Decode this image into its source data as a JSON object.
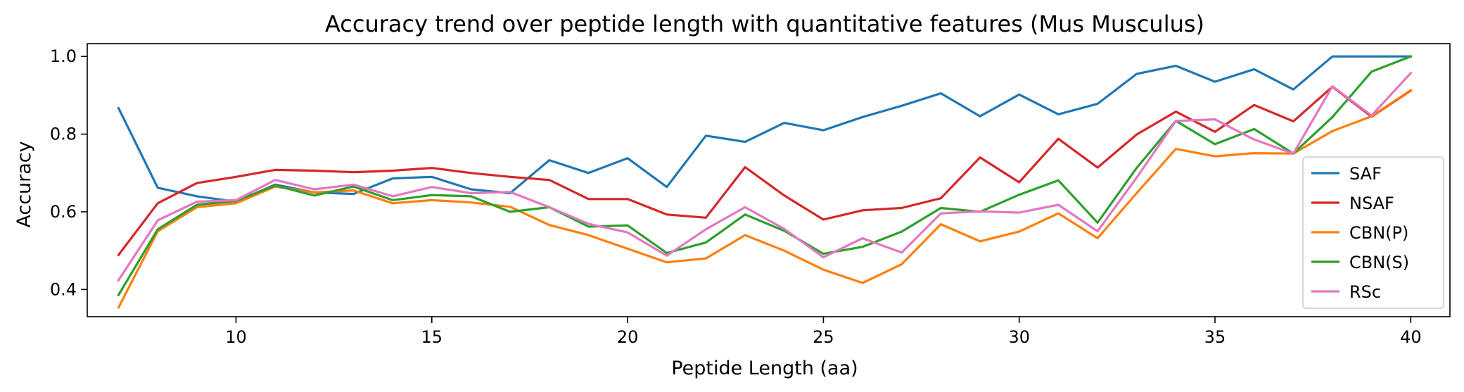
{
  "chart_data": {
    "type": "line",
    "title": "Accuracy trend over peptide length with quantitative features (Mus Musculus)",
    "xlabel": "Peptide Length (aa)",
    "ylabel": "Accuracy",
    "xlim": [
      6.2,
      41.0
    ],
    "ylim": [
      0.33,
      1.033
    ],
    "xticks": [
      10,
      15,
      20,
      25,
      30,
      35,
      40
    ],
    "yticks": [
      0.4,
      0.6,
      0.8,
      1.0
    ],
    "ytick_labels": [
      "0.4",
      "0.6",
      "0.8",
      "1.0"
    ],
    "grid": false,
    "legend_position": "lower-right",
    "x": [
      7,
      8,
      9,
      10,
      11,
      12,
      13,
      14,
      15,
      16,
      17,
      18,
      19,
      20,
      21,
      22,
      23,
      24,
      25,
      26,
      27,
      28,
      29,
      30,
      31,
      32,
      33,
      34,
      35,
      36,
      37,
      38,
      39,
      40
    ],
    "series": [
      {
        "name": "SAF",
        "color": "#1f77b4",
        "values": [
          0.867,
          0.662,
          0.64,
          0.626,
          0.67,
          0.65,
          0.646,
          0.686,
          0.69,
          0.658,
          0.648,
          0.733,
          0.7,
          0.738,
          0.664,
          0.796,
          0.78,
          0.829,
          0.81,
          0.844,
          0.873,
          0.905,
          0.846,
          0.902,
          0.851,
          0.878,
          0.955,
          0.976,
          0.935,
          0.967,
          0.915,
          1.0,
          1.0,
          1.0
        ]
      },
      {
        "name": "NSAF",
        "color": "#d62728",
        "values": [
          0.489,
          0.622,
          0.674,
          0.69,
          0.708,
          0.706,
          0.702,
          0.706,
          0.713,
          0.7,
          0.69,
          0.682,
          0.633,
          0.633,
          0.593,
          0.585,
          0.715,
          0.642,
          0.58,
          0.604,
          0.61,
          0.635,
          0.74,
          0.676,
          0.788,
          0.714,
          0.799,
          0.858,
          0.806,
          0.875,
          0.833,
          0.922,
          0.845,
          0.912
        ]
      },
      {
        "name": "CBN(P)",
        "color": "#ff7f0e",
        "values": [
          0.354,
          0.55,
          0.612,
          0.622,
          0.665,
          0.65,
          0.655,
          0.622,
          0.63,
          0.624,
          0.613,
          0.566,
          0.54,
          0.505,
          0.47,
          0.48,
          0.54,
          0.5,
          0.451,
          0.417,
          0.465,
          0.568,
          0.524,
          0.549,
          0.596,
          0.532,
          0.648,
          0.762,
          0.743,
          0.751,
          0.75,
          0.808,
          0.846,
          0.913
        ]
      },
      {
        "name": "CBN(S)",
        "color": "#2ca02c",
        "values": [
          0.386,
          0.555,
          0.618,
          0.628,
          0.668,
          0.642,
          0.665,
          0.63,
          0.643,
          0.64,
          0.6,
          0.612,
          0.562,
          0.565,
          0.494,
          0.521,
          0.593,
          0.551,
          0.492,
          0.51,
          0.549,
          0.61,
          0.6,
          0.644,
          0.681,
          0.572,
          0.713,
          0.834,
          0.774,
          0.813,
          0.75,
          0.844,
          0.961,
          1.0
        ]
      },
      {
        "name": "RSc",
        "color": "#e377c2",
        "values": [
          0.424,
          0.578,
          0.626,
          0.63,
          0.682,
          0.658,
          0.67,
          0.64,
          0.664,
          0.648,
          0.651,
          0.612,
          0.569,
          0.547,
          0.487,
          0.555,
          0.612,
          0.556,
          0.483,
          0.532,
          0.495,
          0.596,
          0.601,
          0.598,
          0.618,
          0.55,
          0.688,
          0.834,
          0.838,
          0.786,
          0.75,
          0.923,
          0.848,
          0.957
        ]
      }
    ]
  }
}
